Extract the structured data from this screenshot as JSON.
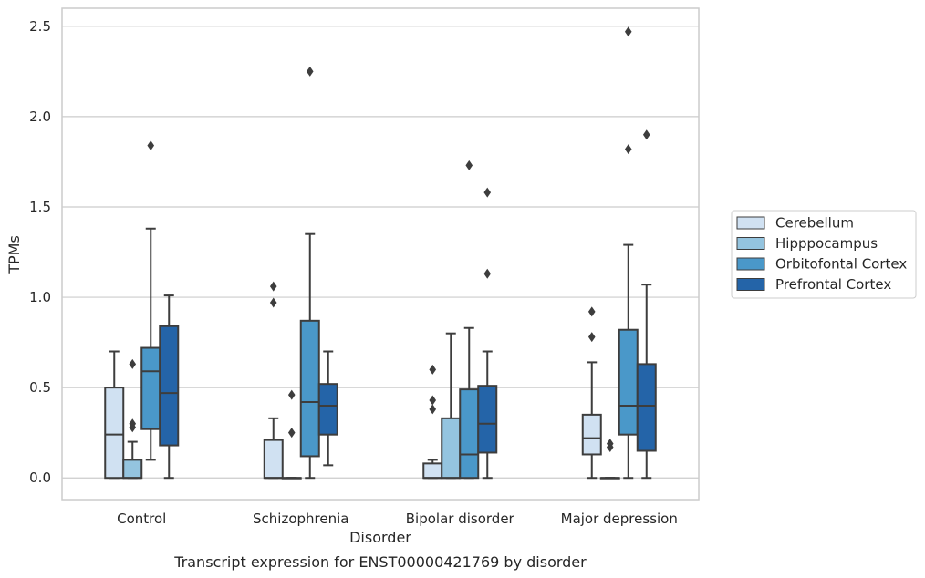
{
  "chart_data": {
    "type": "box",
    "title": "",
    "caption": "Transcript expression for ENST00000421769 by disorder",
    "xlabel": "Disorder",
    "ylabel": "TPMs",
    "ylim": [
      -0.12,
      2.6
    ],
    "yticks": [
      0.0,
      0.5,
      1.0,
      1.5,
      2.0,
      2.5
    ],
    "ytick_labels": [
      "0.0",
      "0.5",
      "1.0",
      "1.5",
      "2.0",
      "2.5"
    ],
    "grid": "horizontal",
    "legend_position": "right",
    "categories": [
      "Control",
      "Schizophrenia",
      "Bipolar disorder",
      "Major depression"
    ],
    "series": [
      {
        "name": "Cerebellum",
        "color": "#d0e1f2",
        "boxes": [
          {
            "whislo": 0.0,
            "q1": 0.0,
            "med": 0.24,
            "q3": 0.5,
            "whishi": 0.7,
            "fliers": []
          },
          {
            "whislo": 0.0,
            "q1": 0.0,
            "med": 0.0,
            "q3": 0.21,
            "whishi": 0.33,
            "fliers": [
              0.97,
              1.06
            ]
          },
          {
            "whislo": 0.0,
            "q1": 0.0,
            "med": 0.0,
            "q3": 0.08,
            "whishi": 0.1,
            "fliers": [
              0.38,
              0.43,
              0.6
            ]
          },
          {
            "whislo": 0.0,
            "q1": 0.13,
            "med": 0.22,
            "q3": 0.35,
            "whishi": 0.64,
            "fliers": [
              0.78,
              0.92
            ]
          }
        ]
      },
      {
        "name": "Hipppocampus",
        "color": "#94c4df",
        "boxes": [
          {
            "whislo": 0.0,
            "q1": 0.0,
            "med": 0.0,
            "q3": 0.1,
            "whishi": 0.2,
            "fliers": [
              0.28,
              0.3,
              0.63
            ]
          },
          {
            "whislo": 0.0,
            "q1": 0.0,
            "med": 0.0,
            "q3": 0.0,
            "whishi": 0.0,
            "fliers": [
              0.25,
              0.46
            ]
          },
          {
            "whislo": 0.0,
            "q1": 0.0,
            "med": 0.0,
            "q3": 0.33,
            "whishi": 0.8,
            "fliers": []
          },
          {
            "whislo": 0.0,
            "q1": 0.0,
            "med": 0.0,
            "q3": 0.0,
            "whishi": 0.0,
            "fliers": [
              0.17,
              0.19
            ]
          }
        ]
      },
      {
        "name": "Orbitofontal Cortex",
        "color": "#4a98c9",
        "boxes": [
          {
            "whislo": 0.1,
            "q1": 0.27,
            "med": 0.59,
            "q3": 0.72,
            "whishi": 1.38,
            "fliers": [
              1.84
            ]
          },
          {
            "whislo": 0.0,
            "q1": 0.12,
            "med": 0.42,
            "q3": 0.87,
            "whishi": 1.35,
            "fliers": [
              2.25
            ]
          },
          {
            "whislo": 0.0,
            "q1": 0.0,
            "med": 0.13,
            "q3": 0.49,
            "whishi": 0.83,
            "fliers": [
              1.73
            ]
          },
          {
            "whislo": 0.0,
            "q1": 0.24,
            "med": 0.4,
            "q3": 0.82,
            "whishi": 1.29,
            "fliers": [
              1.82,
              2.47
            ]
          }
        ]
      },
      {
        "name": "Prefrontal Cortex",
        "color": "#2464a8",
        "boxes": [
          {
            "whislo": 0.0,
            "q1": 0.18,
            "med": 0.47,
            "q3": 0.84,
            "whishi": 1.01,
            "fliers": []
          },
          {
            "whislo": 0.07,
            "q1": 0.24,
            "med": 0.4,
            "q3": 0.52,
            "whishi": 0.7,
            "fliers": []
          },
          {
            "whislo": 0.0,
            "q1": 0.14,
            "med": 0.3,
            "q3": 0.51,
            "whishi": 0.7,
            "fliers": [
              1.13,
              1.58
            ]
          },
          {
            "whislo": 0.0,
            "q1": 0.15,
            "med": 0.4,
            "q3": 0.63,
            "whishi": 1.07,
            "fliers": [
              1.9
            ]
          }
        ]
      }
    ]
  }
}
